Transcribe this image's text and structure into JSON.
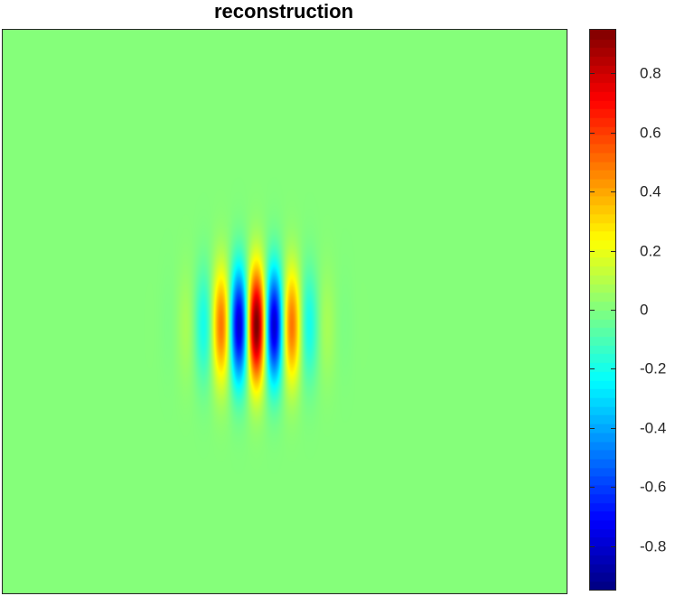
{
  "chart_data": {
    "type": "heatmap",
    "title": "reconstruction",
    "xlabel": "",
    "ylabel": "",
    "colormap": "jet",
    "color_range": [
      -0.95,
      0.95
    ],
    "colorbar": {
      "position": "right",
      "ticks": [
        0.8,
        0.6,
        0.4,
        0.2,
        0,
        -0.2,
        -0.4,
        -0.6,
        -0.8
      ],
      "tick_labels": [
        "0.8",
        "0.6",
        "0.4",
        "0.2",
        "0",
        "-0.2",
        "-0.4",
        "-0.6",
        "-0.8"
      ]
    },
    "field": {
      "description_of_pattern": "Gabor wavelet: cosine carrier along x times Gaussian envelope",
      "domain_x": [
        -1,
        1
      ],
      "domain_y": [
        -1,
        1
      ],
      "center": [
        -0.1,
        -0.05
      ],
      "amplitude": 0.95,
      "carrier_wavelength": 0.13,
      "sigma_x": 0.11,
      "sigma_y": 0.14,
      "background_value": 0.01
    },
    "grid": false,
    "axis_ticks_visible": false
  }
}
